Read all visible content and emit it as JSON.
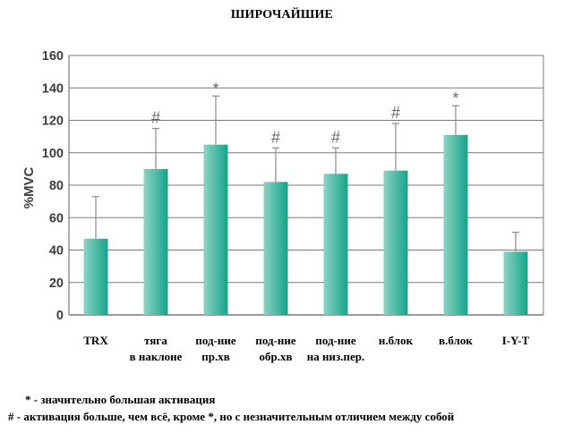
{
  "chart_data": {
    "type": "bar",
    "title": "ШИРОЧАЙШИЕ",
    "ylabel": "%MVC",
    "xlabel": "",
    "ylim": [
      0,
      160
    ],
    "yticks": [
      0,
      20,
      40,
      60,
      80,
      100,
      120,
      140,
      160
    ],
    "grid": true,
    "categories": [
      [
        "TRX"
      ],
      [
        "тяга",
        "в наклоне"
      ],
      [
        "под-ние",
        "пр.хв"
      ],
      [
        "под-ние",
        "обр.хв"
      ],
      [
        "под-ние",
        "на низ.пер."
      ],
      [
        "н.блок"
      ],
      [
        "в.блок"
      ],
      [
        "I-Y-T"
      ]
    ],
    "values": [
      47,
      90,
      105,
      82,
      87,
      89,
      111,
      39
    ],
    "error_upper": [
      73,
      115,
      135,
      103,
      103,
      118,
      129,
      51
    ],
    "markers": [
      "",
      "#",
      "*",
      "#",
      "#",
      "#",
      "*",
      ""
    ],
    "colors": {
      "bar_light": "#8fd3c4",
      "bar_dark": "#12a58a",
      "grid": "#7a7a7a",
      "error": "#8a8a8a"
    }
  },
  "footnotes": [
    "* - значительно большая активация",
    "# - активация больше, чем всё, кроме *, но с незначительным отличием между собой"
  ]
}
